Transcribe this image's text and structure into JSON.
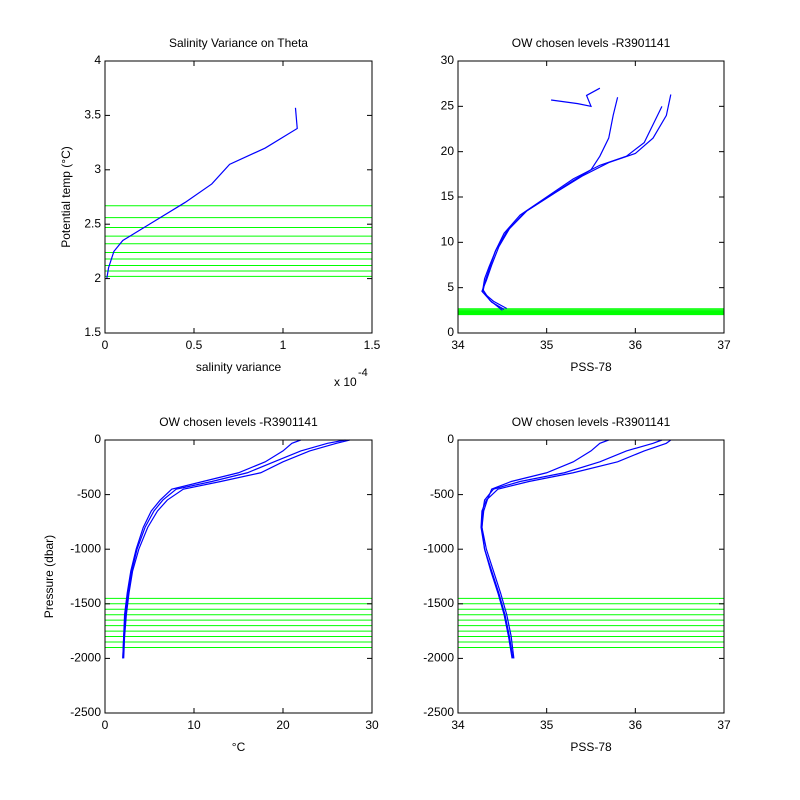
{
  "chart_data": [
    {
      "type": "line",
      "title": "Salinity Variance on Theta",
      "xlabel": "salinity variance",
      "ylabel": "Potential temp (°C)",
      "x_multiplier": "x 10",
      "x_exponent": "-4",
      "xlim": [
        0,
        1.5
      ],
      "ylim": [
        1.5,
        4
      ],
      "xticks": [
        0,
        0.5,
        1,
        1.5
      ],
      "yticks": [
        1.5,
        2,
        2.5,
        3,
        3.5,
        4
      ],
      "color": "#0000ff",
      "series": [
        {
          "x": [
            0.01,
            0.02,
            0.05,
            0.1,
            0.2,
            0.3,
            0.45,
            0.6,
            0.7,
            0.9,
            1.08,
            1.07
          ],
          "values": [
            2.0,
            2.1,
            2.25,
            2.35,
            2.45,
            2.55,
            2.7,
            2.87,
            3.05,
            3.2,
            3.38,
            3.57
          ]
        }
      ],
      "levels": {
        "color": "#00ff00",
        "values": [
          2.67,
          2.56,
          2.47,
          2.39,
          2.32,
          2.24,
          2.18,
          2.12,
          2.07,
          2.02
        ]
      }
    },
    {
      "type": "line",
      "title": "OW chosen levels -R3901141",
      "xlabel": "PSS-78",
      "xlim": [
        34,
        37
      ],
      "ylim": [
        0,
        30
      ],
      "xticks": [
        34,
        35,
        36,
        37
      ],
      "yticks": [
        0,
        5,
        10,
        15,
        20,
        25,
        30
      ],
      "color": "#0000ff",
      "series": [
        {
          "x": [
            34.55,
            34.4,
            34.28,
            34.3,
            34.35,
            34.42,
            34.52,
            34.7,
            35.0,
            35.3,
            35.6,
            35.9,
            36.1,
            36.2,
            36.3
          ],
          "values": [
            2.7,
            3.5,
            4.5,
            5.5,
            7,
            9,
            11,
            13,
            15,
            17,
            18.5,
            19.5,
            21,
            23,
            25
          ]
        },
        {
          "x": [
            34.52,
            34.38,
            34.27,
            34.32,
            34.38,
            34.46,
            34.58,
            34.78,
            35.1,
            35.4,
            35.7,
            36.0,
            36.2,
            36.35,
            36.4
          ],
          "values": [
            2.6,
            3.4,
            4.6,
            5.8,
            7.5,
            9.5,
            11.5,
            13.5,
            15.5,
            17.3,
            18.8,
            19.8,
            21.5,
            24,
            26.3
          ]
        },
        {
          "x": [
            34.5,
            34.36,
            34.28,
            34.3,
            34.35,
            34.43,
            34.55,
            34.75,
            35.05,
            35.3,
            35.5,
            35.6,
            35.7,
            35.75,
            35.8
          ],
          "values": [
            2.5,
            3.6,
            4.8,
            6,
            7.3,
            9.2,
            11.2,
            13.3,
            15.2,
            16.8,
            18,
            19.5,
            21.5,
            24,
            26
          ]
        },
        {
          "x": [
            35.05,
            35.35,
            35.5,
            35.45,
            35.6
          ],
          "values": [
            25.7,
            25.3,
            25.0,
            26.2,
            27.0
          ]
        }
      ],
      "levels": {
        "color": "#00ff00",
        "values": [
          2.67,
          2.56,
          2.47,
          2.39,
          2.32,
          2.24,
          2.18,
          2.12,
          2.07,
          2.02
        ]
      }
    },
    {
      "type": "line",
      "title": "OW chosen levels -R3901141",
      "xlabel": "°C",
      "ylabel": "Pressure (dbar)",
      "xlim": [
        0,
        30
      ],
      "ylim": [
        -2500,
        0
      ],
      "xticks": [
        0,
        10,
        20,
        30
      ],
      "yticks": [
        -2500,
        -2000,
        -1500,
        -1000,
        -500,
        0
      ],
      "color": "#0000ff",
      "series": [
        {
          "x": [
            2,
            2.1,
            2.3,
            2.6,
            3,
            3.6,
            4.5,
            5.5,
            6.5,
            8,
            12,
            16,
            19,
            22,
            25,
            27
          ],
          "values": [
            -2000,
            -1800,
            -1600,
            -1400,
            -1200,
            -1000,
            -800,
            -650,
            -550,
            -450,
            -380,
            -300,
            -200,
            -100,
            -30,
            0
          ]
        },
        {
          "x": [
            2.1,
            2.2,
            2.4,
            2.7,
            3.1,
            3.8,
            4.8,
            5.9,
            7,
            8.8,
            13,
            17.5,
            20,
            23,
            26,
            27.5
          ],
          "values": [
            -2000,
            -1800,
            -1600,
            -1400,
            -1200,
            -1000,
            -800,
            -650,
            -550,
            -450,
            -380,
            -300,
            -200,
            -100,
            -30,
            0
          ]
        },
        {
          "x": [
            2,
            2.1,
            2.2,
            2.5,
            2.9,
            3.5,
            4.3,
            5.2,
            6.2,
            7.5,
            11,
            15,
            18,
            20,
            21,
            22
          ],
          "values": [
            -2000,
            -1800,
            -1600,
            -1400,
            -1200,
            -1000,
            -800,
            -650,
            -550,
            -450,
            -380,
            -300,
            -200,
            -100,
            -30,
            0
          ]
        }
      ],
      "levels": {
        "color": "#00ff00",
        "values": [
          -1450,
          -1500,
          -1550,
          -1600,
          -1650,
          -1700,
          -1750,
          -1800,
          -1850,
          -1900
        ]
      }
    },
    {
      "type": "line",
      "title": "OW chosen levels -R3901141",
      "xlabel": "PSS-78",
      "xlim": [
        34,
        37
      ],
      "ylim": [
        -2500,
        0
      ],
      "xticks": [
        34,
        35,
        36,
        37
      ],
      "yticks": [
        -2500,
        -2000,
        -1500,
        -1000,
        -500,
        0
      ],
      "color": "#0000ff",
      "series": [
        {
          "x": [
            34.63,
            34.6,
            34.55,
            34.48,
            34.4,
            34.32,
            34.27,
            34.28,
            34.3,
            34.4,
            34.7,
            35.2,
            35.6,
            35.9,
            36.2,
            36.3
          ],
          "values": [
            -2000,
            -1800,
            -1600,
            -1400,
            -1200,
            -1000,
            -800,
            -650,
            -550,
            -450,
            -380,
            -300,
            -200,
            -100,
            -30,
            0
          ]
        },
        {
          "x": [
            34.62,
            34.58,
            34.53,
            34.46,
            34.38,
            34.3,
            34.26,
            34.27,
            34.32,
            34.45,
            34.8,
            35.3,
            35.8,
            36.1,
            36.35,
            36.4
          ],
          "values": [
            -2000,
            -1800,
            -1600,
            -1400,
            -1200,
            -1000,
            -800,
            -650,
            -550,
            -450,
            -380,
            -300,
            -200,
            -100,
            -30,
            0
          ]
        },
        {
          "x": [
            34.61,
            34.57,
            34.52,
            34.45,
            34.37,
            34.3,
            34.27,
            34.29,
            34.33,
            34.38,
            34.6,
            35.0,
            35.3,
            35.5,
            35.6,
            35.7
          ],
          "values": [
            -2000,
            -1800,
            -1600,
            -1400,
            -1200,
            -1000,
            -800,
            -650,
            -550,
            -450,
            -380,
            -300,
            -200,
            -100,
            -30,
            0
          ]
        }
      ],
      "levels": {
        "color": "#00ff00",
        "values": [
          -1450,
          -1500,
          -1550,
          -1600,
          -1650,
          -1700,
          -1750,
          -1800,
          -1850,
          -1900
        ]
      }
    }
  ]
}
